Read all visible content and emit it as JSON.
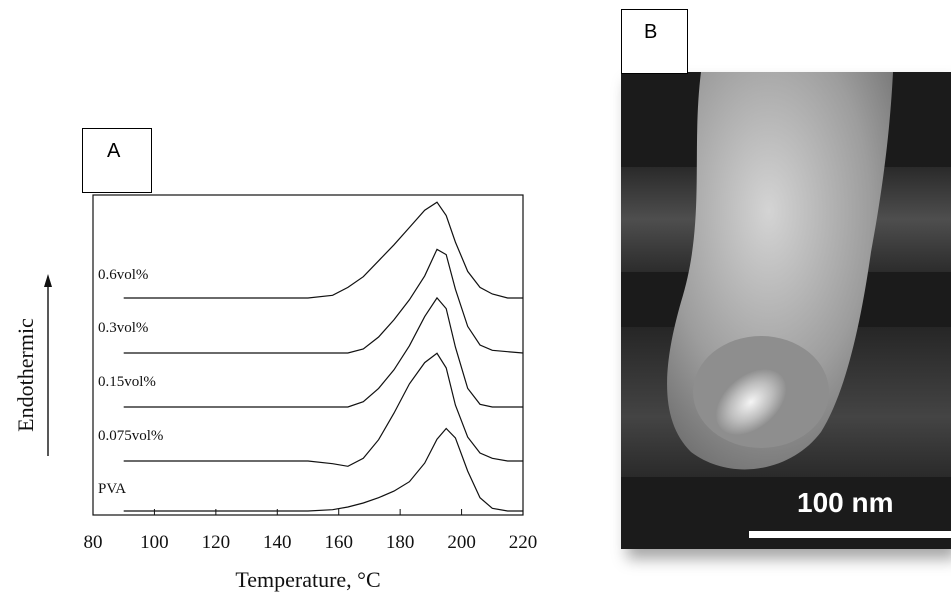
{
  "panel_a": {
    "tag": "A"
  },
  "panel_b": {
    "tag": "B",
    "scale_bar_label": "100 nm"
  },
  "chart_data": {
    "type": "line",
    "xlabel": "Temperature, °C",
    "ylabel": "Endothermic",
    "xlim": [
      80,
      220
    ],
    "x_ticks": [
      80,
      100,
      120,
      140,
      160,
      180,
      200,
      220
    ],
    "grid": false,
    "legend": "none",
    "series": [
      {
        "name": "0.6vol%",
        "x": [
          90,
          100,
          120,
          140,
          150,
          158,
          163,
          168,
          173,
          178,
          183,
          188,
          192,
          195,
          198,
          202,
          206,
          210,
          215,
          220
        ],
        "y": [
          1.0,
          1.0,
          1.0,
          1.0,
          1.0,
          1.02,
          1.08,
          1.16,
          1.28,
          1.4,
          1.53,
          1.66,
          1.72,
          1.62,
          1.42,
          1.2,
          1.08,
          1.03,
          1.0,
          1.0
        ]
      },
      {
        "name": "0.3vol%",
        "x": [
          90,
          100,
          120,
          140,
          150,
          158,
          163,
          168,
          173,
          178,
          183,
          188,
          192,
          195,
          198,
          202,
          206,
          210,
          215,
          220
        ],
        "y": [
          1.0,
          1.0,
          1.0,
          1.0,
          1.0,
          1.0,
          1.0,
          1.03,
          1.12,
          1.25,
          1.4,
          1.58,
          1.78,
          1.74,
          1.48,
          1.2,
          1.06,
          1.02,
          1.01,
          1.0
        ]
      },
      {
        "name": "0.15vol%",
        "x": [
          90,
          100,
          120,
          140,
          150,
          158,
          163,
          168,
          173,
          178,
          183,
          188,
          192,
          195,
          198,
          202,
          206,
          210,
          215,
          220
        ],
        "y": [
          1.0,
          1.0,
          1.0,
          1.0,
          1.0,
          1.0,
          1.0,
          1.04,
          1.14,
          1.28,
          1.46,
          1.68,
          1.82,
          1.74,
          1.45,
          1.14,
          1.02,
          1.0,
          1.0,
          1.0
        ]
      },
      {
        "name": "0.075vol%",
        "x": [
          90,
          100,
          120,
          140,
          150,
          158,
          163,
          168,
          173,
          178,
          183,
          188,
          192,
          195,
          198,
          202,
          206,
          210,
          215,
          220
        ],
        "y": [
          1.0,
          1.0,
          1.0,
          1.0,
          1.0,
          0.98,
          0.96,
          1.02,
          1.16,
          1.36,
          1.58,
          1.74,
          1.81,
          1.7,
          1.42,
          1.18,
          1.06,
          1.02,
          1.0,
          1.0
        ]
      },
      {
        "name": "PVA",
        "x": [
          90,
          100,
          120,
          140,
          150,
          158,
          163,
          168,
          173,
          178,
          183,
          188,
          192,
          195,
          198,
          202,
          206,
          210,
          215,
          220
        ],
        "y": [
          1.0,
          1.0,
          1.0,
          1.0,
          1.0,
          1.01,
          1.03,
          1.06,
          1.1,
          1.15,
          1.22,
          1.36,
          1.54,
          1.62,
          1.55,
          1.3,
          1.1,
          1.02,
          1.0,
          1.0
        ]
      }
    ]
  }
}
